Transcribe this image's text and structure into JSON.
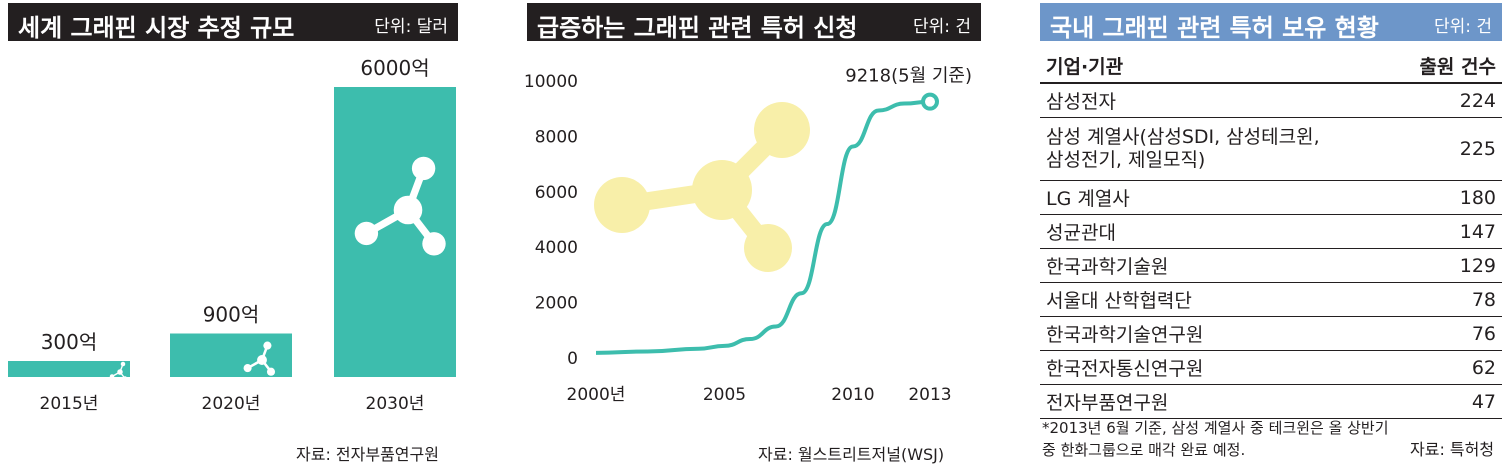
{
  "panel1": {
    "title": "세계 그래핀 시장 추정 규모",
    "unit": "단위: 달러",
    "source": "자료: 전자부품연구원"
  },
  "panel2": {
    "title": "급증하는 그래핀 관련 특허 신청",
    "unit": "단위: 건",
    "source": "자료: 월스트리트저널(WSJ)",
    "annotation": "9218(5월 기준)"
  },
  "panel3": {
    "title": "국내 그래핀 관련 특허 보유 현황",
    "unit": "단위: 건",
    "columns": [
      "기업·기관",
      "출원 건수"
    ],
    "rows": [
      {
        "name": "삼성전자",
        "value": "224"
      },
      {
        "name": "삼성 계열사(삼성SDI, 삼성테크윈,\n삼성전기, 제일모직)",
        "value": "225"
      },
      {
        "name": "LG 계열사",
        "value": "180"
      },
      {
        "name": "성균관대",
        "value": "147"
      },
      {
        "name": "한국과학기술원",
        "value": "129"
      },
      {
        "name": "서울대 산학협력단",
        "value": "78"
      },
      {
        "name": "한국과학기술연구원",
        "value": "76"
      },
      {
        "name": "한국전자통신연구원",
        "value": "62"
      },
      {
        "name": "전자부품연구원",
        "value": "47"
      }
    ],
    "note_line1": "*2013년 6월 기준, 삼성 계열사 중 테크윈은 올 상반기",
    "note_line2": "중 한화그룹으로 매각 완료 예정.",
    "source": "자료: 특허청"
  },
  "colors": {
    "teal": "#3dbdad",
    "dark": "#231f20",
    "blue": "#6d96c9",
    "yellow": "#f8efa9"
  },
  "chart_data": [
    {
      "type": "bar",
      "title": "세계 그래핀 시장 추정 규모",
      "unit": "단위: 달러",
      "categories": [
        "2015년",
        "2020년",
        "2030년"
      ],
      "values": [
        300,
        900,
        6000
      ],
      "value_labels": [
        "300억",
        "900억",
        "6000억"
      ],
      "ylim": [
        0,
        6000
      ]
    },
    {
      "type": "line",
      "title": "급증하는 그래핀 관련 특허 신청",
      "unit": "단위: 건",
      "x_ticks": [
        "2000년",
        "2005",
        "2010",
        "2013"
      ],
      "y_ticks": [
        "0",
        "2000",
        "4000",
        "6000",
        "8000",
        "10000"
      ],
      "ylim": [
        0,
        10000
      ],
      "xlim": [
        2000,
        2013
      ],
      "x": [
        2000,
        2002,
        2004,
        2005,
        2006,
        2007,
        2008,
        2009,
        2010,
        2011,
        2012,
        2013
      ],
      "y": [
        150,
        200,
        300,
        400,
        650,
        1100,
        2300,
        4800,
        7600,
        8900,
        9150,
        9218
      ],
      "annotation": "9218(5월 기준)"
    },
    {
      "type": "table",
      "title": "국내 그래핀 관련 특허 보유 현황",
      "unit": "단위: 건",
      "columns": [
        "기업·기관",
        "출원 건수"
      ],
      "rows": [
        [
          "삼성전자",
          224
        ],
        [
          "삼성 계열사(삼성SDI, 삼성테크윈, 삼성전기, 제일모직)",
          225
        ],
        [
          "LG 계열사",
          180
        ],
        [
          "성균관대",
          147
        ],
        [
          "한국과학기술원",
          129
        ],
        [
          "서울대 산학협력단",
          78
        ],
        [
          "한국과학기술연구원",
          76
        ],
        [
          "한국전자통신연구원",
          62
        ],
        [
          "전자부품연구원",
          47
        ]
      ]
    }
  ]
}
